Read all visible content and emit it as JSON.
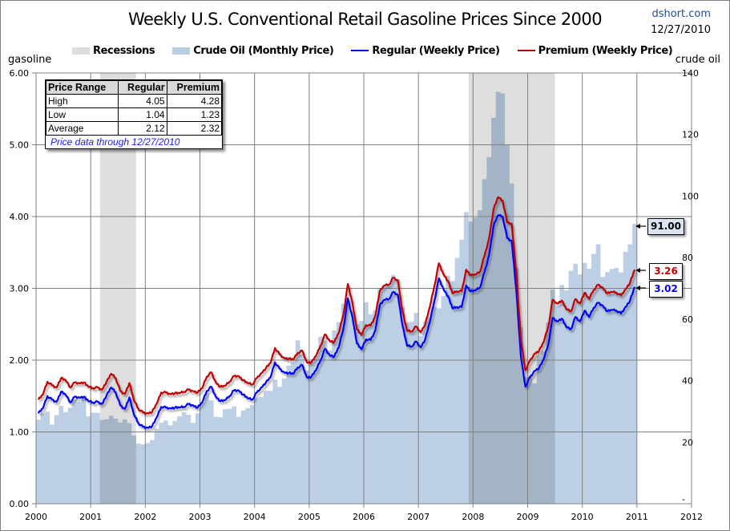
{
  "header": {
    "title": "Weekly U.S. Conventional Retail Gasoline Prices Since 2000",
    "source": "dshort.com",
    "date": "12/27/2010"
  },
  "legend": [
    {
      "label": "Recessions",
      "kind": "box",
      "color": "#dedede"
    },
    {
      "label": "Crude Oil (Monthly Price)",
      "kind": "box",
      "color": "#b8cce4"
    },
    {
      "label": "Regular (Weekly Price)",
      "kind": "line",
      "color": "#0000ff"
    },
    {
      "label": "Premium (Weekly Price)",
      "kind": "line",
      "color": "#c00000"
    }
  ],
  "stats_table": {
    "headers": [
      "Price Range",
      "Regular",
      "Premium"
    ],
    "rows": [
      [
        "High",
        "4.05",
        "4.28"
      ],
      [
        "Low",
        "1.04",
        "1.23"
      ],
      [
        "Average",
        "2.12",
        "2.32"
      ]
    ],
    "note": "Price data through 12/27/2010"
  },
  "callouts": [
    {
      "label": "91.00",
      "series": "crude",
      "bg": "#dbe5f1",
      "color": "#000000"
    },
    {
      "label": "3.26",
      "series": "premium",
      "bg": "#ffffff",
      "color": "#c00000"
    },
    {
      "label": "3.02",
      "series": "regular",
      "bg": "#ffffff",
      "color": "#0000ff"
    }
  ],
  "chart_data": {
    "type": "line",
    "title": "Weekly U.S. Conventional Retail Gasoline Prices Since 2000",
    "xlabel": "",
    "ylabel": "gasoline",
    "y2label": "crude oil",
    "xlim": [
      2000,
      2012
    ],
    "ylim": [
      0,
      6
    ],
    "y2lim": [
      0,
      140
    ],
    "x_ticks": [
      "2000",
      "2001",
      "2002",
      "2003",
      "2004",
      "2005",
      "2006",
      "2007",
      "2008",
      "2009",
      "2010",
      "2011",
      "2012"
    ],
    "y_ticks": [
      "0.00",
      "1.00",
      "2.00",
      "3.00",
      "4.00",
      "5.00",
      "6.00"
    ],
    "y2_ticks": [
      "-",
      "20",
      "40",
      "60",
      "80",
      "100",
      "120",
      "140"
    ],
    "grid": true,
    "legend_position": "top",
    "recessions": [
      [
        2001.17,
        2001.83
      ],
      [
        2007.92,
        2009.5
      ]
    ],
    "colors": {
      "recession": "#dedede",
      "crude": "#b8cce4",
      "regular": "#0000ff",
      "premium": "#c00000",
      "grid": "#808080"
    },
    "series": [
      {
        "name": "Crude Oil (Monthly Price)",
        "axis": "right",
        "kind": "area",
        "x_start": 2000.0,
        "x_step_months": 1,
        "values": [
          27.3,
          29.4,
          29.9,
          25.7,
          28.8,
          31.8,
          29.8,
          31.2,
          33.9,
          33.1,
          34.4,
          28.4,
          29.6,
          29.6,
          27.2,
          27.4,
          28.6,
          27.6,
          26.4,
          27.4,
          26.2,
          22.2,
          19.6,
          19.3,
          19.7,
          20.7,
          24.4,
          26.3,
          27.0,
          25.5,
          26.9,
          28.4,
          29.7,
          28.9,
          26.3,
          29.4,
          32.9,
          35.9,
          33.6,
          28.3,
          28.1,
          30.7,
          30.8,
          31.6,
          28.3,
          30.3,
          31.1,
          32.1,
          34.3,
          34.7,
          36.7,
          36.7,
          40.3,
          38.0,
          40.7,
          44.9,
          45.9,
          53.1,
          48.5,
          43.3,
          46.8,
          48.1,
          54.3,
          53.0,
          49.8,
          56.3,
          59.0,
          65.0,
          65.6,
          62.4,
          58.3,
          59.4,
          65.5,
          61.6,
          62.9,
          69.7,
          70.9,
          71.0,
          74.4,
          73.0,
          63.8,
          58.9,
          59.1,
          62.0,
          54.5,
          59.3,
          60.4,
          63.9,
          63.5,
          67.5,
          74.1,
          72.4,
          79.9,
          85.8,
          94.8,
          91.7,
          93.0,
          95.4,
          105.5,
          112.6,
          125.4,
          133.9,
          133.4,
          116.7,
          104.1,
          76.6,
          57.3,
          41.1,
          41.7,
          39.1,
          47.9,
          49.6,
          59.0,
          69.6,
          64.2,
          71.1,
          69.4,
          75.7,
          78.0,
          74.5,
          78.3,
          76.4,
          81.2,
          84.3,
          73.7,
          75.3,
          76.3,
          76.6,
          75.2,
          81.9,
          84.3,
          91.0
        ]
      },
      {
        "name": "Regular (Weekly Price)",
        "axis": "left",
        "kind": "line",
        "x_start": 2000.0,
        "x_step_months": 1,
        "values": [
          1.26,
          1.33,
          1.5,
          1.45,
          1.42,
          1.56,
          1.52,
          1.41,
          1.49,
          1.48,
          1.49,
          1.43,
          1.41,
          1.42,
          1.39,
          1.51,
          1.62,
          1.55,
          1.37,
          1.32,
          1.48,
          1.24,
          1.12,
          1.07,
          1.06,
          1.08,
          1.2,
          1.35,
          1.34,
          1.33,
          1.34,
          1.34,
          1.35,
          1.39,
          1.37,
          1.34,
          1.41,
          1.57,
          1.63,
          1.49,
          1.43,
          1.44,
          1.5,
          1.58,
          1.58,
          1.52,
          1.47,
          1.45,
          1.55,
          1.62,
          1.69,
          1.76,
          1.97,
          1.88,
          1.83,
          1.82,
          1.81,
          1.9,
          1.93,
          1.76,
          1.77,
          1.86,
          2.0,
          2.16,
          2.07,
          2.05,
          2.18,
          2.43,
          2.86,
          2.6,
          2.23,
          2.15,
          2.29,
          2.28,
          2.41,
          2.76,
          2.84,
          2.85,
          2.95,
          2.91,
          2.48,
          2.2,
          2.19,
          2.26,
          2.18,
          2.29,
          2.53,
          2.82,
          3.14,
          2.99,
          2.89,
          2.72,
          2.74,
          2.74,
          3.04,
          2.96,
          2.97,
          3.01,
          3.22,
          3.46,
          3.87,
          4.02,
          4.0,
          3.7,
          3.66,
          2.97,
          2.05,
          1.63,
          1.76,
          1.85,
          1.89,
          2.01,
          2.21,
          2.59,
          2.54,
          2.58,
          2.46,
          2.43,
          2.6,
          2.54,
          2.69,
          2.6,
          2.73,
          2.8,
          2.76,
          2.68,
          2.7,
          2.69,
          2.65,
          2.74,
          2.83,
          3.02
        ]
      },
      {
        "name": "Premium (Weekly Price)",
        "axis": "left",
        "kind": "line",
        "x_start": 2000.0,
        "x_step_months": 1,
        "values": [
          1.45,
          1.52,
          1.7,
          1.65,
          1.62,
          1.75,
          1.72,
          1.62,
          1.69,
          1.68,
          1.69,
          1.63,
          1.61,
          1.62,
          1.59,
          1.7,
          1.81,
          1.75,
          1.57,
          1.53,
          1.68,
          1.44,
          1.32,
          1.27,
          1.26,
          1.28,
          1.39,
          1.55,
          1.55,
          1.53,
          1.54,
          1.54,
          1.56,
          1.59,
          1.57,
          1.55,
          1.61,
          1.77,
          1.83,
          1.69,
          1.63,
          1.64,
          1.7,
          1.78,
          1.78,
          1.72,
          1.68,
          1.66,
          1.75,
          1.82,
          1.89,
          1.96,
          2.17,
          2.08,
          2.03,
          2.02,
          2.01,
          2.1,
          2.13,
          1.97,
          1.97,
          2.06,
          2.2,
          2.36,
          2.27,
          2.25,
          2.38,
          2.63,
          3.06,
          2.8,
          2.43,
          2.35,
          2.49,
          2.48,
          2.61,
          2.96,
          3.04,
          3.05,
          3.15,
          3.11,
          2.68,
          2.41,
          2.4,
          2.47,
          2.39,
          2.5,
          2.74,
          3.03,
          3.35,
          3.2,
          3.1,
          2.93,
          2.96,
          2.96,
          3.26,
          3.18,
          3.19,
          3.23,
          3.45,
          3.69,
          4.1,
          4.27,
          4.22,
          3.92,
          3.9,
          3.22,
          2.29,
          1.86,
          1.99,
          2.09,
          2.13,
          2.25,
          2.46,
          2.84,
          2.79,
          2.83,
          2.71,
          2.68,
          2.85,
          2.79,
          2.94,
          2.85,
          2.98,
          3.05,
          3.01,
          2.93,
          2.95,
          2.94,
          2.9,
          2.99,
          3.08,
          3.26
        ]
      }
    ],
    "annotations": [
      "91.00",
      "3.26",
      "3.02"
    ]
  }
}
